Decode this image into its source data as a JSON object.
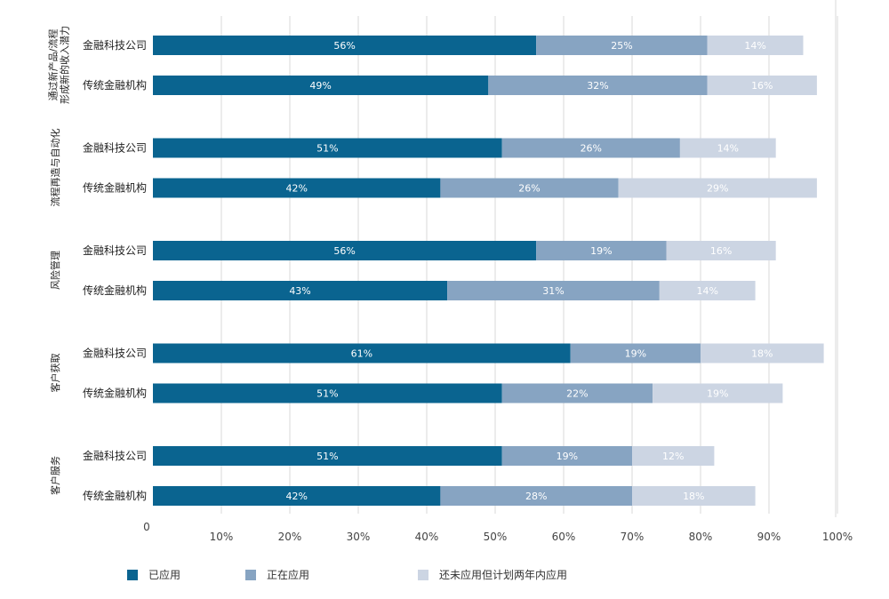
{
  "chart_data": {
    "type": "bar",
    "orientation": "horizontal",
    "stacked": true,
    "xlim": [
      0,
      100
    ],
    "x_ticks": [
      "0",
      "10%",
      "20%",
      "30%",
      "40%",
      "50%",
      "60%",
      "70%",
      "80%",
      "90%",
      "100%"
    ],
    "grid": true,
    "legend_position": "bottom",
    "series": [
      {
        "name": "已应用",
        "color": "#0a6490"
      },
      {
        "name": "正在应用",
        "color": "#87a4c2"
      },
      {
        "name": "还未应用但计划两年内应用",
        "color": "#ccd5e3"
      }
    ],
    "groups": [
      {
        "label_lines": [
          "通过新产品/流程",
          "形成新的收入潜力"
        ],
        "bars": [
          {
            "label": "金融科技公司",
            "values": [
              56,
              25,
              14
            ],
            "labels": [
              "56%",
              "25%",
              "14%"
            ]
          },
          {
            "label": "传统金融机构",
            "values": [
              49,
              32,
              16
            ],
            "labels": [
              "49%",
              "32%",
              "16%"
            ]
          }
        ]
      },
      {
        "label_lines": [
          "流程再造与自动化"
        ],
        "bars": [
          {
            "label": "金融科技公司",
            "values": [
              51,
              26,
              14
            ],
            "labels": [
              "51%",
              "26%",
              "14%"
            ]
          },
          {
            "label": "传统金融机构",
            "values": [
              42,
              26,
              29
            ],
            "labels": [
              "42%",
              "26%",
              "29%"
            ]
          }
        ]
      },
      {
        "label_lines": [
          "风险管理"
        ],
        "bars": [
          {
            "label": "金融科技公司",
            "values": [
              56,
              19,
              16
            ],
            "labels": [
              "56%",
              "19%",
              "16%"
            ]
          },
          {
            "label": "传统金融机构",
            "values": [
              43,
              31,
              14
            ],
            "labels": [
              "43%",
              "31%",
              "14%"
            ]
          }
        ]
      },
      {
        "label_lines": [
          "客户获取"
        ],
        "bars": [
          {
            "label": "金融科技公司",
            "values": [
              61,
              19,
              18
            ],
            "labels": [
              "61%",
              "19%",
              "18%"
            ]
          },
          {
            "label": "传统金融机构",
            "values": [
              51,
              22,
              19
            ],
            "labels": [
              "51%",
              "22%",
              "19%"
            ]
          }
        ]
      },
      {
        "label_lines": [
          "客户服务"
        ],
        "bars": [
          {
            "label": "金融科技公司",
            "values": [
              51,
              19,
              12
            ],
            "labels": [
              "51%",
              "19%",
              "12%"
            ]
          },
          {
            "label": "传统金融机构",
            "values": [
              42,
              28,
              18
            ],
            "labels": [
              "42%",
              "28%",
              "18%"
            ]
          }
        ]
      }
    ]
  }
}
